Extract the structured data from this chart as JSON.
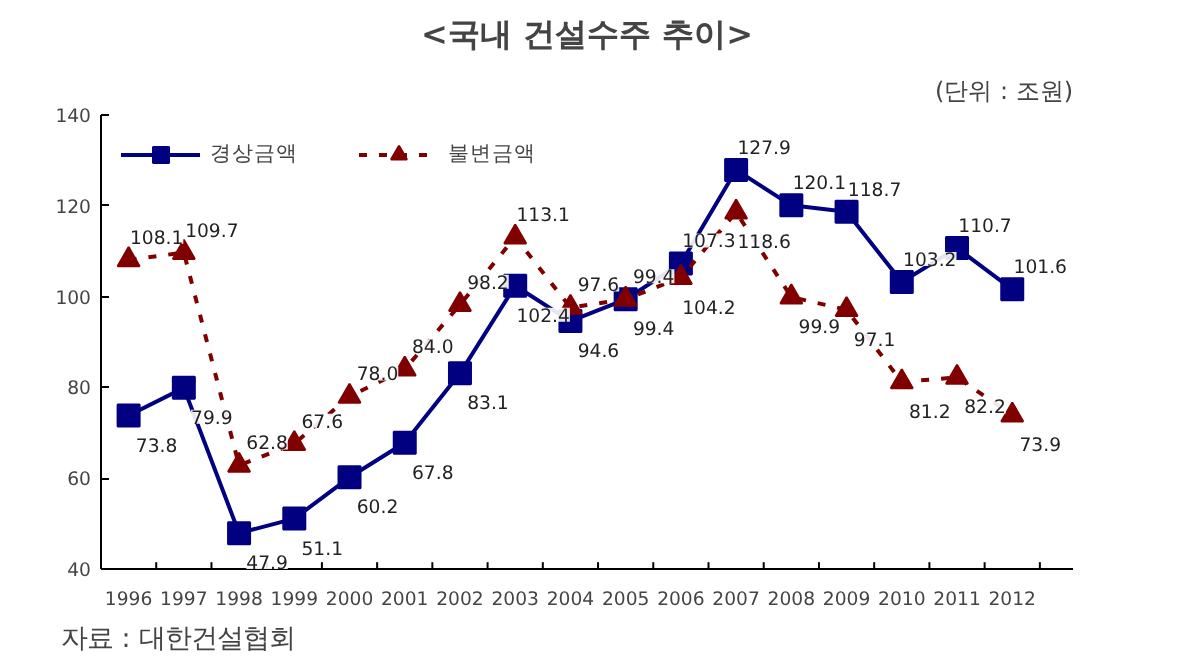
{
  "chart_data": {
    "type": "line",
    "title": "<국내 건설수주 추이>",
    "subtitle": "(단위 : 조원)",
    "annotations": [
      "자료 : 대한건설협회"
    ],
    "categories": [
      "1996",
      "1997",
      "1998",
      "1999",
      "2000",
      "2001",
      "2002",
      "2003",
      "2004",
      "2005",
      "2006",
      "2007",
      "2008",
      "2009",
      "2010",
      "2011",
      "2012"
    ],
    "series": [
      {
        "name": "경상금액",
        "color": "#000080",
        "marker": "square",
        "line_style": "solid",
        "values": [
          73.8,
          79.9,
          47.9,
          51.1,
          60.2,
          67.8,
          83.1,
          102.4,
          94.6,
          99.4,
          107.3,
          127.9,
          120.1,
          118.7,
          103.2,
          110.7,
          101.6
        ],
        "value_labels": [
          "73.8",
          "79.9",
          "47.9",
          "51.1",
          "60.2",
          "67.8",
          "83.1",
          "102.4",
          "94.6",
          "99.4",
          "107.3",
          "127.9",
          "120.1",
          "118.7",
          "103.2",
          "110.7",
          "101.6"
        ]
      },
      {
        "name": "불변금액",
        "color": "#800000",
        "marker": "triangle",
        "line_style": "dashed",
        "values": [
          108.1,
          109.7,
          62.8,
          67.6,
          78.0,
          84.0,
          98.2,
          113.1,
          97.6,
          99.4,
          104.2,
          118.6,
          99.9,
          97.1,
          81.2,
          82.2,
          73.9
        ],
        "value_labels": [
          "108.1",
          "109.7",
          "62.8",
          "67.6",
          "78.0",
          "84.0",
          "98.2",
          "113.1",
          "97.6",
          "99.4",
          "104.2",
          "118.6",
          "99.9",
          "97.1",
          "81.2",
          "82.2",
          "73.9"
        ]
      }
    ],
    "ylim": [
      40,
      140
    ],
    "yticks": [
      40,
      60,
      80,
      100,
      120,
      140
    ],
    "grid": false,
    "legend": "top left"
  }
}
